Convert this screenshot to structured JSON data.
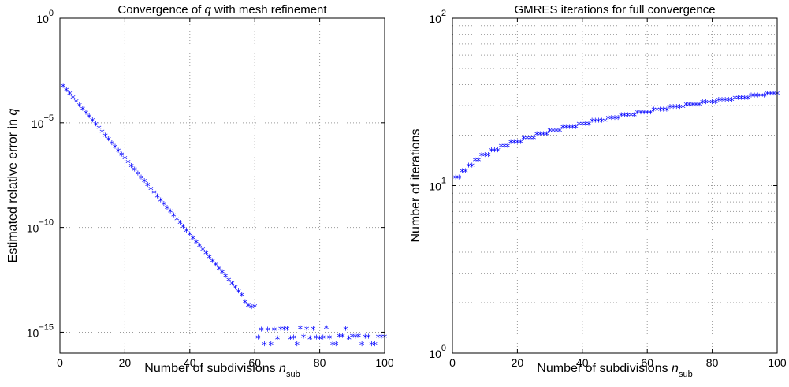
{
  "chart_data": [
    {
      "type": "scatter",
      "title": {
        "pre": "Convergence of ",
        "var": "q",
        "post": " with mesh refinement"
      },
      "xlabel": {
        "text": "Number of subdivisions ",
        "var": "n",
        "sub": "sub"
      },
      "ylabel": {
        "text": "Estimated relative error in ",
        "var": "q"
      },
      "yscale": "log",
      "xlim": [
        0,
        100
      ],
      "ylim_exp": [
        -16,
        0
      ],
      "grid": true,
      "x_ticks": [
        "0",
        "20",
        "40",
        "60",
        "80",
        "100"
      ],
      "y_ticks": [
        {
          "exp": -15,
          "base": "10",
          "sup": "−15"
        },
        {
          "exp": -10,
          "base": "10",
          "sup": "−10"
        },
        {
          "exp": -5,
          "base": "10",
          "sup": "−5"
        },
        {
          "exp": 0,
          "base": "10",
          "sup": "0"
        }
      ],
      "series": [
        {
          "color": "#0000ff",
          "marker": "*",
          "x": [
            1,
            2,
            3,
            4,
            5,
            6,
            7,
            8,
            9,
            10,
            11,
            12,
            13,
            14,
            15,
            16,
            17,
            18,
            19,
            20,
            21,
            22,
            23,
            24,
            25,
            26,
            27,
            28,
            29,
            30,
            31,
            32,
            33,
            34,
            35,
            36,
            37,
            38,
            39,
            40,
            41,
            42,
            43,
            44,
            45,
            46,
            47,
            48,
            49,
            50,
            51,
            52,
            53,
            54,
            55,
            56,
            57,
            58,
            59,
            60,
            61,
            62,
            63,
            64,
            65,
            66,
            67,
            68,
            69,
            70,
            71,
            72,
            73,
            74,
            75,
            76,
            77,
            78,
            79,
            80,
            81,
            82,
            83,
            84,
            85,
            86,
            87,
            88,
            89,
            90,
            91,
            92,
            93,
            94,
            95,
            96,
            97,
            98,
            99,
            100
          ],
          "y": [
            "5.0e-4",
            "3.3e-4",
            "2.2e-4",
            "1.45e-4",
            "9.5e-5",
            "6.2e-5",
            "4.1e-5",
            "2.7e-5",
            "1.8e-5",
            "1.17e-5",
            "7.7e-6",
            "5.1e-6",
            "3.3e-6",
            "2.2e-6",
            "1.45e-6",
            "9.5e-7",
            "6.3e-7",
            "4.1e-7",
            "2.7e-7",
            "1.8e-7",
            "1.18e-7",
            "7.8e-8",
            "5.1e-8",
            "3.4e-8",
            "2.2e-8",
            "1.46e-8",
            "9.6e-9",
            "6.3e-9",
            "4.2e-9",
            "2.75e-9",
            "1.8e-9",
            "1.19e-9",
            "7.8e-10",
            "5.2e-10",
            "3.4e-10",
            "2.25e-10",
            "1.48e-10",
            "9.7e-11",
            "6.4e-11",
            "4.2e-11",
            "2.8e-11",
            "1.82e-11",
            "1.2e-11",
            "7.9e-12",
            "5.2e-12",
            "3.4e-12",
            "2.27e-12",
            "1.5e-12",
            "9.8e-13",
            "6.5e-13",
            "4.3e-13",
            "2.8e-13",
            "1.85e-13",
            "1.22e-13",
            "8.0e-14",
            "5.3e-14",
            "2.5e-14",
            "1.7e-14",
            "1.4e-14",
            "1.5e-14",
            "5.0e-16",
            "1.2e-15",
            "2.4e-16",
            "1.2e-15",
            "2.4e-16",
            "1.2e-15",
            "4.5e-16",
            "1.3e-15",
            "1.3e-15",
            "1.3e-15",
            "4.5e-16",
            "5.0e-16",
            "2.4e-16",
            "1.4e-15",
            "5.5e-16",
            "1.3e-15",
            "4.5e-16",
            "1.3e-15",
            "5.0e-16",
            "4.5e-16",
            "5.0e-16",
            "1.5e-15",
            "5.0e-16",
            "2.4e-16",
            "2.4e-16",
            "6.0e-16",
            "6.0e-16",
            "1.3e-15",
            "4.5e-16",
            "6.0e-16",
            "5.5e-16",
            "6.0e-16",
            "2.4e-16",
            "5.5e-16",
            "5.5e-16",
            "2.4e-16",
            "2.4e-16",
            "5.5e-16",
            "5.5e-16",
            "5.5e-16"
          ]
        }
      ]
    },
    {
      "type": "scatter",
      "title": {
        "pre": "GMRES iterations for full convergence",
        "var": "",
        "post": ""
      },
      "xlabel": {
        "text": "Number of subdivisions ",
        "var": "n",
        "sub": "sub"
      },
      "ylabel": {
        "text": "Number of iterations",
        "var": "",
        "post": ""
      },
      "yscale": "log",
      "xlim": [
        0,
        100
      ],
      "ylim_exp": [
        0,
        2
      ],
      "grid": true,
      "x_ticks": [
        "0",
        "20",
        "40",
        "60",
        "80",
        "100"
      ],
      "y_ticks": [
        {
          "exp": 0,
          "base": "10",
          "sup": "0"
        },
        {
          "exp": 1,
          "base": "10",
          "sup": "1"
        },
        {
          "exp": 2,
          "base": "10",
          "sup": "2"
        }
      ],
      "series": [
        {
          "color": "#0000ff",
          "marker": "*",
          "x": [
            1,
            2,
            3,
            4,
            5,
            6,
            7,
            8,
            9,
            10,
            11,
            12,
            13,
            14,
            15,
            16,
            17,
            18,
            19,
            20,
            21,
            22,
            23,
            24,
            25,
            26,
            27,
            28,
            29,
            30,
            31,
            32,
            33,
            34,
            35,
            36,
            37,
            38,
            39,
            40,
            41,
            42,
            43,
            44,
            45,
            46,
            47,
            48,
            49,
            50,
            51,
            52,
            53,
            54,
            55,
            56,
            57,
            58,
            59,
            60,
            61,
            62,
            63,
            64,
            65,
            66,
            67,
            68,
            69,
            70,
            71,
            72,
            73,
            74,
            75,
            76,
            77,
            78,
            79,
            80,
            81,
            82,
            83,
            84,
            85,
            86,
            87,
            88,
            89,
            90,
            91,
            92,
            93,
            94,
            95,
            96,
            97,
            98,
            99,
            100
          ],
          "y": [
            11,
            11,
            12,
            12,
            13,
            13,
            14,
            14,
            15,
            15,
            15,
            16,
            16,
            16,
            17,
            17,
            17,
            18,
            18,
            18,
            18,
            19,
            19,
            19,
            19,
            20,
            20,
            20,
            20,
            21,
            21,
            21,
            21,
            22,
            22,
            22,
            22,
            22,
            23,
            23,
            23,
            23,
            24,
            24,
            24,
            24,
            24,
            25,
            25,
            25,
            25,
            26,
            26,
            26,
            26,
            26,
            27,
            27,
            27,
            27,
            27,
            28,
            28,
            28,
            28,
            28,
            29,
            29,
            29,
            29,
            29,
            30,
            30,
            30,
            30,
            30,
            31,
            31,
            31,
            31,
            31,
            32,
            32,
            32,
            32,
            32,
            33,
            33,
            33,
            33,
            33,
            34,
            34,
            34,
            34,
            34,
            35,
            35,
            35,
            35
          ]
        }
      ]
    }
  ]
}
